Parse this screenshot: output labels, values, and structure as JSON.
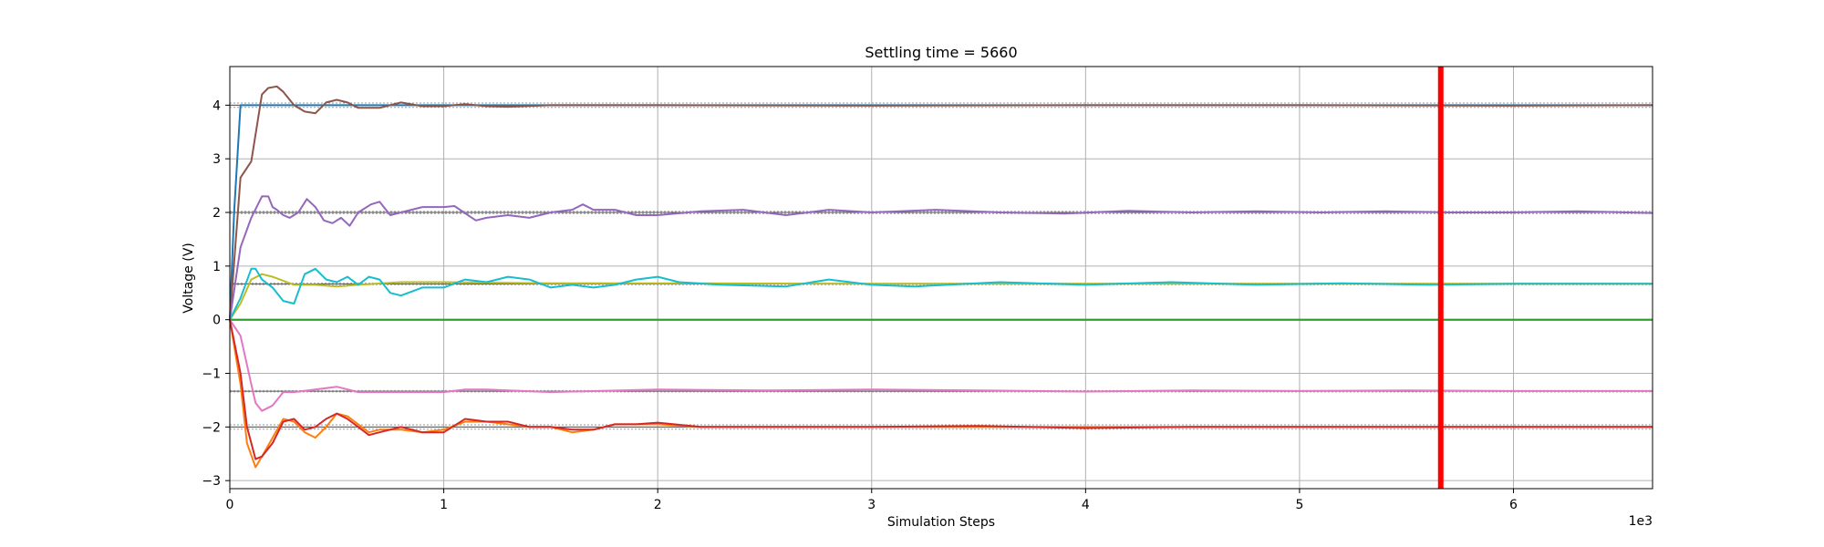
{
  "chart_data": {
    "type": "line",
    "title": "Settling time = 5660",
    "xlabel": "Simulation Steps",
    "ylabel": "Voltage (V)",
    "x_multiplier_label": "1e3",
    "xlim": [
      0,
      6.65
    ],
    "ylim": [
      -3.15,
      4.72
    ],
    "x_unit_scale": 1000,
    "xticks": [
      0,
      1,
      2,
      3,
      4,
      5,
      6
    ],
    "yticks": [
      -3,
      -2,
      -1,
      0,
      1,
      2,
      3,
      4
    ],
    "grid": true,
    "marker": {
      "x": 5.66,
      "color": "#ff0000"
    },
    "reference_bands": [
      {
        "center": 4.0,
        "upper": 4.04,
        "lower": 3.96
      },
      {
        "center": 2.0,
        "upper": 2.02,
        "lower": 1.98
      },
      {
        "center": 0.667,
        "upper": 0.68,
        "lower": 0.653
      },
      {
        "center": 0.0,
        "upper": 0.005,
        "lower": -0.005
      },
      {
        "center": -1.333,
        "upper": -1.32,
        "lower": -1.347
      },
      {
        "center": -2.0,
        "upper": -1.96,
        "lower": -2.04
      }
    ],
    "series": [
      {
        "color": "#1f77b4",
        "x": [
          0,
          0.02,
          0.05,
          0.1,
          0.5,
          1,
          2,
          3,
          4,
          5,
          6,
          6.65
        ],
        "y": [
          0,
          2.0,
          4.0,
          4.0,
          4.0,
          4.0,
          4.0,
          4.0,
          4.0,
          4.0,
          4.0,
          4.0
        ]
      },
      {
        "color": "#8c564b",
        "x": [
          0,
          0.05,
          0.1,
          0.15,
          0.18,
          0.22,
          0.25,
          0.3,
          0.35,
          0.4,
          0.45,
          0.5,
          0.55,
          0.6,
          0.7,
          0.8,
          0.9,
          1.0,
          1.1,
          1.2,
          1.3,
          1.5,
          2,
          3,
          4,
          5,
          6,
          6.65
        ],
        "y": [
          0,
          2.65,
          2.95,
          4.2,
          4.32,
          4.35,
          4.25,
          4.0,
          3.88,
          3.85,
          4.05,
          4.1,
          4.05,
          3.95,
          3.95,
          4.05,
          3.98,
          3.98,
          4.02,
          3.98,
          3.97,
          4.0,
          4.0,
          3.99,
          4.0,
          4.0,
          3.99,
          4.0
        ]
      },
      {
        "color": "#9467bd",
        "x": [
          0,
          0.05,
          0.1,
          0.15,
          0.18,
          0.2,
          0.22,
          0.25,
          0.28,
          0.32,
          0.36,
          0.4,
          0.44,
          0.48,
          0.52,
          0.56,
          0.6,
          0.66,
          0.7,
          0.75,
          0.8,
          0.9,
          1.0,
          1.05,
          1.15,
          1.2,
          1.3,
          1.4,
          1.5,
          1.6,
          1.65,
          1.7,
          1.8,
          1.9,
          2.0,
          2.2,
          2.4,
          2.6,
          2.8,
          3.0,
          3.3,
          3.6,
          3.9,
          4.2,
          4.5,
          4.8,
          5.1,
          5.4,
          5.7,
          6.0,
          6.3,
          6.65
        ],
        "y": [
          0,
          1.35,
          1.9,
          2.3,
          2.3,
          2.1,
          2.05,
          1.95,
          1.9,
          2.0,
          2.25,
          2.1,
          1.85,
          1.8,
          1.9,
          1.75,
          2.0,
          2.15,
          2.2,
          1.95,
          2.0,
          2.1,
          2.1,
          2.12,
          1.85,
          1.9,
          1.95,
          1.9,
          2.0,
          2.05,
          2.15,
          2.05,
          2.05,
          1.95,
          1.95,
          2.02,
          2.05,
          1.95,
          2.05,
          2.0,
          2.05,
          2.0,
          1.98,
          2.03,
          2.0,
          2.02,
          2.0,
          2.02,
          2.0,
          2.0,
          2.02,
          1.99
        ]
      },
      {
        "color": "#bcbd22",
        "x": [
          0,
          0.05,
          0.1,
          0.15,
          0.2,
          0.3,
          0.4,
          0.5,
          0.6,
          0.8,
          1.0,
          1.5,
          2.0,
          3.0,
          4.0,
          5.0,
          6.0,
          6.65
        ],
        "y": [
          0,
          0.3,
          0.75,
          0.85,
          0.8,
          0.65,
          0.65,
          0.62,
          0.65,
          0.7,
          0.7,
          0.68,
          0.68,
          0.67,
          0.67,
          0.67,
          0.67,
          0.67
        ]
      },
      {
        "color": "#17becf",
        "x": [
          0,
          0.05,
          0.1,
          0.12,
          0.15,
          0.2,
          0.25,
          0.3,
          0.35,
          0.4,
          0.45,
          0.5,
          0.55,
          0.6,
          0.65,
          0.7,
          0.75,
          0.8,
          0.9,
          1.0,
          1.1,
          1.2,
          1.3,
          1.4,
          1.5,
          1.6,
          1.7,
          1.8,
          1.9,
          2.0,
          2.1,
          2.3,
          2.6,
          2.8,
          3.0,
          3.2,
          3.6,
          4.0,
          4.4,
          4.8,
          5.2,
          5.6,
          6.0,
          6.65
        ],
        "y": [
          0,
          0.4,
          0.95,
          0.95,
          0.75,
          0.6,
          0.35,
          0.3,
          0.85,
          0.95,
          0.75,
          0.7,
          0.8,
          0.65,
          0.8,
          0.75,
          0.5,
          0.45,
          0.6,
          0.6,
          0.75,
          0.7,
          0.8,
          0.75,
          0.6,
          0.65,
          0.6,
          0.65,
          0.75,
          0.8,
          0.7,
          0.65,
          0.62,
          0.75,
          0.65,
          0.62,
          0.7,
          0.65,
          0.7,
          0.65,
          0.68,
          0.65,
          0.67,
          0.67
        ]
      },
      {
        "color": "#7f7f7f",
        "x": [
          0,
          6.65
        ],
        "y": [
          0,
          0
        ]
      },
      {
        "color": "#2ca02c",
        "x": [
          0,
          6.65
        ],
        "y": [
          0,
          0
        ]
      },
      {
        "color": "#e377c2",
        "x": [
          0,
          0.05,
          0.1,
          0.12,
          0.15,
          0.2,
          0.25,
          0.3,
          0.4,
          0.5,
          0.6,
          0.7,
          0.8,
          1.0,
          1.1,
          1.2,
          1.5,
          2.0,
          2.5,
          3.0,
          3.5,
          4.0,
          4.5,
          5.0,
          5.5,
          6.0,
          6.65
        ],
        "y": [
          0,
          -0.3,
          -1.2,
          -1.55,
          -1.7,
          -1.6,
          -1.35,
          -1.35,
          -1.3,
          -1.25,
          -1.35,
          -1.35,
          -1.35,
          -1.35,
          -1.3,
          -1.3,
          -1.35,
          -1.3,
          -1.32,
          -1.3,
          -1.32,
          -1.34,
          -1.32,
          -1.33,
          -1.32,
          -1.33,
          -1.33
        ]
      },
      {
        "color": "#ff7f0e",
        "x": [
          0,
          0.05,
          0.08,
          0.12,
          0.15,
          0.2,
          0.25,
          0.3,
          0.35,
          0.4,
          0.45,
          0.5,
          0.55,
          0.6,
          0.65,
          0.7,
          0.8,
          0.9,
          1.0,
          1.1,
          1.2,
          1.3,
          1.4,
          1.5,
          1.6,
          1.7,
          1.8,
          1.9,
          2.0,
          2.2,
          2.5,
          3.0,
          3.5,
          4.0,
          4.5,
          5.0,
          5.5,
          6.0,
          6.65
        ],
        "y": [
          0,
          -1.2,
          -2.3,
          -2.75,
          -2.55,
          -2.2,
          -1.85,
          -1.9,
          -2.1,
          -2.2,
          -2.0,
          -1.75,
          -1.8,
          -1.95,
          -2.1,
          -2.05,
          -2.05,
          -2.1,
          -2.05,
          -1.9,
          -1.9,
          -1.95,
          -2.0,
          -2.0,
          -2.1,
          -2.05,
          -1.95,
          -1.95,
          -1.95,
          -2.0,
          -2.0,
          -2.0,
          -2.0,
          -2.0,
          -2.0,
          -2.0,
          -2.0,
          -2.0,
          -2.0
        ]
      },
      {
        "color": "#d62728",
        "x": [
          0,
          0.05,
          0.08,
          0.12,
          0.15,
          0.2,
          0.25,
          0.3,
          0.35,
          0.4,
          0.45,
          0.5,
          0.55,
          0.6,
          0.65,
          0.7,
          0.8,
          0.9,
          1.0,
          1.1,
          1.2,
          1.3,
          1.4,
          1.5,
          1.6,
          1.7,
          1.8,
          1.9,
          2.0,
          2.2,
          2.5,
          3.0,
          3.5,
          4.0,
          4.5,
          5.0,
          5.5,
          6.0,
          6.65
        ],
        "y": [
          0,
          -1.0,
          -2.0,
          -2.6,
          -2.55,
          -2.3,
          -1.9,
          -1.85,
          -2.05,
          -2.0,
          -1.85,
          -1.75,
          -1.85,
          -2.0,
          -2.15,
          -2.1,
          -2.0,
          -2.1,
          -2.1,
          -1.85,
          -1.9,
          -1.9,
          -2.0,
          -2.0,
          -2.05,
          -2.05,
          -1.95,
          -1.95,
          -1.92,
          -2.0,
          -2.0,
          -2.0,
          -1.98,
          -2.02,
          -2.0,
          -2.0,
          -2.0,
          -2.0,
          -2.0
        ]
      }
    ]
  }
}
